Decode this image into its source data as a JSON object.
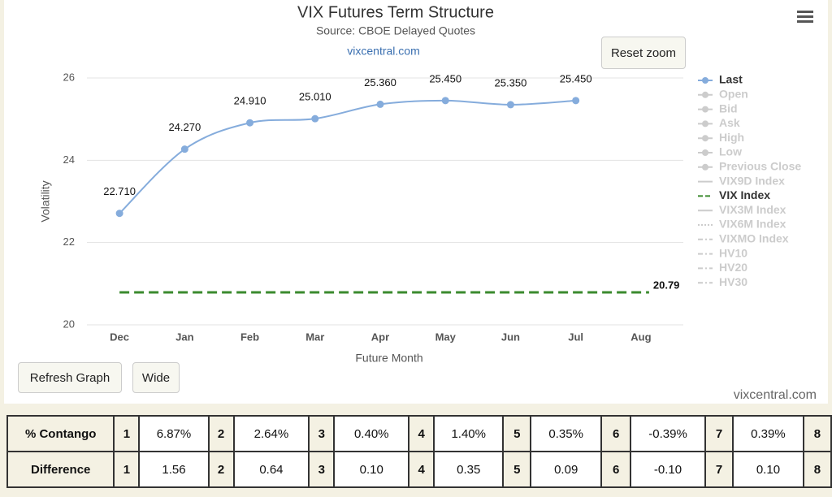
{
  "chart_data": {
    "type": "line",
    "title": "VIX Futures Term Structure",
    "subtitle": "Source: CBOE Delayed Quotes",
    "link": "vixcentral.com",
    "xlabel": "Future Month",
    "ylabel": "Volatility",
    "categories": [
      "Dec",
      "Jan",
      "Feb",
      "Mar",
      "Apr",
      "May",
      "Jun",
      "Jul",
      "Aug"
    ],
    "ylim": [
      20,
      26
    ],
    "yticks": [
      20,
      22,
      24,
      26
    ],
    "grid": true,
    "series": [
      {
        "name": "Last",
        "color": "#85acdc",
        "visible": true,
        "symbol": "circle",
        "values": [
          22.71,
          24.27,
          24.91,
          25.01,
          25.36,
          25.45,
          25.35,
          25.45,
          null
        ],
        "value_labels": [
          "22.710",
          "24.270",
          "24.910",
          "25.010",
          "25.360",
          "25.450",
          "25.350",
          "25.450",
          null
        ]
      },
      {
        "name": "Open",
        "color": "#cccccc",
        "visible": false,
        "symbol": "diamond"
      },
      {
        "name": "Bid",
        "color": "#cccccc",
        "visible": false,
        "symbol": "square"
      },
      {
        "name": "Ask",
        "color": "#cccccc",
        "visible": false,
        "symbol": "triangle"
      },
      {
        "name": "High",
        "color": "#cccccc",
        "visible": false,
        "symbol": "triangle-down"
      },
      {
        "name": "Low",
        "color": "#cccccc",
        "visible": false,
        "symbol": "circle"
      },
      {
        "name": "Previous Close",
        "color": "#cccccc",
        "visible": false,
        "symbol": "diamond"
      },
      {
        "name": "VIX9D Index",
        "color": "#cccccc",
        "visible": false,
        "dash": "solid"
      },
      {
        "name": "VIX Index",
        "color": "#3b8a2e",
        "visible": true,
        "dash": "dash",
        "value": 20.79,
        "value_label": "20.79"
      },
      {
        "name": "VIX3M Index",
        "color": "#cccccc",
        "visible": false,
        "dash": "solid"
      },
      {
        "name": "VIX6M Index",
        "color": "#cccccc",
        "visible": false,
        "dash": "dot"
      },
      {
        "name": "VIXMO Index",
        "color": "#cccccc",
        "visible": false,
        "dash": "dashdot"
      },
      {
        "name": "HV10",
        "color": "#cccccc",
        "visible": false,
        "dash": "dashdot"
      },
      {
        "name": "HV20",
        "color": "#cccccc",
        "visible": false,
        "dash": "dashdot"
      },
      {
        "name": "HV30",
        "color": "#cccccc",
        "visible": false,
        "dash": "dashdot"
      }
    ]
  },
  "buttons": {
    "reset": "Reset zoom",
    "refresh": "Refresh Graph",
    "wide": "Wide"
  },
  "footer": "vixcentral.com",
  "table": {
    "rows": [
      [
        "% Contango",
        "1",
        "6.87%",
        "2",
        "2.64%",
        "3",
        "0.40%",
        "4",
        "1.40%",
        "5",
        "0.35%",
        "6",
        "-0.39%",
        "7",
        "0.39%",
        "8"
      ],
      [
        "Difference",
        "1",
        "1.56",
        "2",
        "0.64",
        "3",
        "0.10",
        "4",
        "0.35",
        "5",
        "0.09",
        "6",
        "-0.10",
        "7",
        "0.10",
        "8"
      ]
    ]
  }
}
